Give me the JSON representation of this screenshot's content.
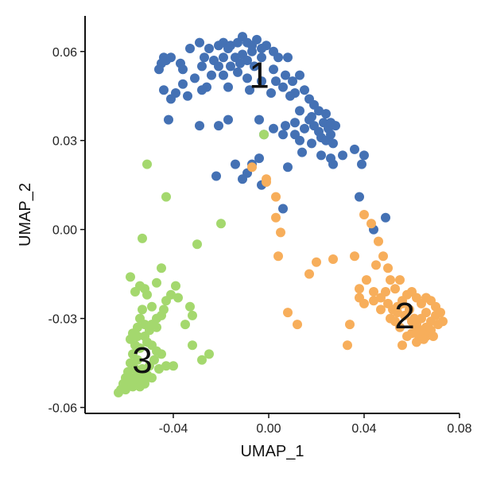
{
  "chart_data": {
    "type": "scatter",
    "title": "",
    "xlabel": "UMAP_1",
    "ylabel": "UMAP_2",
    "xlim": [
      -0.077,
      0.08
    ],
    "ylim": [
      -0.062,
      0.072
    ],
    "x_ticks": [
      -0.04,
      0.0,
      0.04,
      0.08
    ],
    "x_tick_labels": [
      "-0.04",
      "0.00",
      "0.04",
      "0.08"
    ],
    "y_ticks": [
      -0.06,
      -0.03,
      0.0,
      0.03,
      0.06
    ],
    "y_tick_labels": [
      "-0.06",
      "-0.03",
      "0.00",
      "0.03",
      "0.06"
    ],
    "grid": false,
    "legend": "none",
    "series": [
      {
        "label": "1",
        "color": "#4471b4",
        "label_pos": [
          -0.004,
          0.051
        ],
        "points": [
          [
            -0.044,
            0.058
          ],
          [
            -0.045,
            0.056
          ],
          [
            -0.043,
            0.057
          ],
          [
            -0.041,
            0.058
          ],
          [
            -0.046,
            0.054
          ],
          [
            -0.037,
            0.056
          ],
          [
            -0.033,
            0.061
          ],
          [
            -0.029,
            0.063
          ],
          [
            -0.025,
            0.061
          ],
          [
            -0.021,
            0.062
          ],
          [
            -0.019,
            0.063
          ],
          [
            -0.016,
            0.062
          ],
          [
            -0.013,
            0.063
          ],
          [
            -0.011,
            0.065
          ],
          [
            -0.009,
            0.063
          ],
          [
            -0.007,
            0.062
          ],
          [
            -0.005,
            0.064
          ],
          [
            -0.003,
            0.061
          ],
          [
            -0.001,
            0.062
          ],
          [
            0.002,
            0.06
          ],
          [
            0.004,
            0.058
          ],
          [
            -0.017,
            0.061
          ],
          [
            -0.011,
            0.059
          ],
          [
            -0.007,
            0.06
          ],
          [
            -0.003,
            0.058
          ],
          [
            -0.027,
            0.058
          ],
          [
            -0.023,
            0.057
          ],
          [
            -0.019,
            0.058
          ],
          [
            -0.014,
            0.058
          ],
          [
            -0.009,
            0.057
          ],
          [
            -0.036,
            0.054
          ],
          [
            -0.028,
            0.055
          ],
          [
            -0.021,
            0.055
          ],
          [
            -0.016,
            0.055
          ],
          [
            -0.012,
            0.056
          ],
          [
            -0.006,
            0.055
          ],
          [
            0.002,
            0.054
          ],
          [
            0.008,
            0.058
          ],
          [
            -0.031,
            0.051
          ],
          [
            -0.024,
            0.052
          ],
          [
            -0.019,
            0.052
          ],
          [
            -0.013,
            0.053
          ],
          [
            -0.009,
            0.051
          ],
          [
            -0.003,
            0.05
          ],
          [
            0.003,
            0.05
          ],
          [
            0.007,
            0.052
          ],
          [
            0.01,
            0.05
          ],
          [
            0.013,
            0.052
          ],
          [
            -0.036,
            0.049
          ],
          [
            -0.026,
            0.048
          ],
          [
            -0.017,
            0.048
          ],
          [
            -0.008,
            0.047
          ],
          [
            0.001,
            0.046
          ],
          [
            0.006,
            0.048
          ],
          [
            0.011,
            0.046
          ],
          [
            -0.044,
            0.047
          ],
          [
            -0.039,
            0.046
          ],
          [
            -0.034,
            0.045
          ],
          [
            -0.041,
            0.044
          ],
          [
            -0.028,
            0.047
          ],
          [
            0.009,
            0.045
          ],
          [
            0.015,
            0.047
          ],
          [
            0.017,
            0.044
          ],
          [
            0.019,
            0.042
          ],
          [
            0.021,
            0.04
          ],
          [
            0.024,
            0.039
          ],
          [
            0.013,
            0.04
          ],
          [
            0.017,
            0.037
          ],
          [
            0.019,
            0.035
          ],
          [
            0.021,
            0.033
          ],
          [
            0.023,
            0.036
          ],
          [
            0.025,
            0.034
          ],
          [
            0.026,
            0.036
          ],
          [
            0.026,
            0.032
          ],
          [
            0.028,
            0.035
          ],
          [
            0.022,
            0.031
          ],
          [
            0.018,
            0.038
          ],
          [
            0.015,
            0.034
          ],
          [
            0.011,
            0.036
          ],
          [
            0.007,
            0.035
          ],
          [
            0.002,
            0.034
          ],
          [
            -0.004,
            0.037
          ],
          [
            -0.017,
            0.037
          ],
          [
            -0.021,
            0.035
          ],
          [
            -0.029,
            0.035
          ],
          [
            -0.042,
            0.037
          ],
          [
            -0.002,
            0.032
          ],
          [
            0.006,
            0.032
          ],
          [
            0.011,
            0.032
          ],
          [
            0.013,
            0.03
          ],
          [
            0.018,
            0.029
          ],
          [
            0.024,
            0.03
          ],
          [
            0.027,
            0.029
          ],
          [
            0.014,
            0.026
          ],
          [
            0.022,
            0.025
          ],
          [
            0.026,
            0.024
          ],
          [
            0.031,
            0.025
          ],
          [
            0.036,
            0.027
          ],
          [
            0.04,
            0.025
          ],
          [
            0.039,
            0.022
          ],
          [
            0.027,
            0.022
          ],
          [
            0.008,
            0.021
          ],
          [
            -0.004,
            0.024
          ],
          [
            -0.007,
            0.022
          ],
          [
            -0.009,
            0.019
          ],
          [
            -0.011,
            0.017
          ],
          [
            -0.003,
            0.015
          ],
          [
            0.006,
            0.007
          ],
          [
            0.038,
            0.011
          ],
          [
            0.044,
            0.0
          ],
          [
            0.049,
            0.004
          ],
          [
            -0.022,
            0.018
          ],
          [
            -0.014,
            0.022
          ]
        ]
      },
      {
        "label": "2",
        "color": "#f7ae5b",
        "label_pos": [
          0.057,
          -0.03
        ],
        "points": [
          [
            -0.007,
            0.021
          ],
          [
            -0.001,
            0.016
          ],
          [
            0.003,
            0.011
          ],
          [
            0.003,
            0.004
          ],
          [
            -0.001,
            0.017
          ],
          [
            0.005,
            -0.001
          ],
          [
            0.004,
            -0.009
          ],
          [
            0.017,
            -0.015
          ],
          [
            0.02,
            -0.011
          ],
          [
            0.027,
            -0.01
          ],
          [
            0.036,
            -0.009
          ],
          [
            0.04,
            0.005
          ],
          [
            0.043,
            0.002
          ],
          [
            0.046,
            -0.004
          ],
          [
            0.045,
            -0.012
          ],
          [
            0.048,
            -0.009
          ],
          [
            0.05,
            -0.013
          ],
          [
            0.051,
            -0.017
          ],
          [
            0.053,
            -0.02
          ],
          [
            0.055,
            -0.017
          ],
          [
            0.041,
            -0.017
          ],
          [
            0.038,
            -0.02
          ],
          [
            0.038,
            -0.023
          ],
          [
            0.04,
            -0.025
          ],
          [
            0.044,
            -0.024
          ],
          [
            0.047,
            -0.023
          ],
          [
            0.049,
            -0.021
          ],
          [
            0.05,
            -0.025
          ],
          [
            0.052,
            -0.027
          ],
          [
            0.051,
            -0.03
          ],
          [
            0.053,
            -0.031
          ],
          [
            0.054,
            -0.028
          ],
          [
            0.056,
            -0.025
          ],
          [
            0.058,
            -0.022
          ],
          [
            0.06,
            -0.021
          ],
          [
            0.062,
            -0.023
          ],
          [
            0.064,
            -0.025
          ],
          [
            0.066,
            -0.023
          ],
          [
            0.068,
            -0.024
          ],
          [
            0.07,
            -0.026
          ],
          [
            0.066,
            -0.028
          ],
          [
            0.064,
            -0.03
          ],
          [
            0.062,
            -0.032
          ],
          [
            0.06,
            -0.035
          ],
          [
            0.063,
            -0.036
          ],
          [
            0.066,
            -0.033
          ],
          [
            0.068,
            -0.031
          ],
          [
            0.07,
            -0.029
          ],
          [
            0.071,
            -0.032
          ],
          [
            0.073,
            -0.031
          ],
          [
            0.068,
            -0.034
          ],
          [
            0.066,
            -0.036
          ],
          [
            0.064,
            -0.034
          ],
          [
            0.061,
            -0.03
          ],
          [
            0.059,
            -0.027
          ],
          [
            0.057,
            -0.029
          ],
          [
            0.055,
            -0.033
          ],
          [
            0.058,
            -0.036
          ],
          [
            0.056,
            -0.039
          ],
          [
            0.062,
            -0.038
          ],
          [
            0.065,
            -0.037
          ],
          [
            0.069,
            -0.036
          ],
          [
            0.062,
            -0.034
          ],
          [
            0.06,
            -0.031
          ],
          [
            0.072,
            -0.028
          ],
          [
            0.056,
            -0.024
          ],
          [
            0.054,
            -0.026
          ],
          [
            0.047,
            -0.027
          ],
          [
            0.044,
            -0.021
          ],
          [
            0.034,
            -0.032
          ],
          [
            0.033,
            -0.039
          ],
          [
            0.012,
            -0.032
          ],
          [
            0.008,
            -0.028
          ]
        ]
      },
      {
        "label": "3",
        "color": "#a4d86e",
        "label_pos": [
          -0.053,
          -0.045
        ],
        "points": [
          [
            -0.002,
            0.032
          ],
          [
            -0.051,
            0.022
          ],
          [
            -0.043,
            0.011
          ],
          [
            -0.02,
            0.002
          ],
          [
            -0.053,
            -0.003
          ],
          [
            -0.03,
            -0.005
          ],
          [
            -0.045,
            -0.013
          ],
          [
            -0.047,
            -0.018
          ],
          [
            -0.058,
            -0.016
          ],
          [
            -0.054,
            -0.019
          ],
          [
            -0.056,
            -0.021
          ],
          [
            -0.052,
            -0.02
          ],
          [
            -0.051,
            -0.022
          ],
          [
            -0.039,
            -0.019
          ],
          [
            -0.041,
            -0.022
          ],
          [
            -0.043,
            -0.024
          ],
          [
            -0.044,
            -0.027
          ],
          [
            -0.045,
            -0.029
          ],
          [
            -0.047,
            -0.03
          ],
          [
            -0.049,
            -0.026
          ],
          [
            -0.053,
            -0.027
          ],
          [
            -0.054,
            -0.03
          ],
          [
            -0.055,
            -0.033
          ],
          [
            -0.052,
            -0.032
          ],
          [
            -0.049,
            -0.032
          ],
          [
            -0.047,
            -0.033
          ],
          [
            -0.05,
            -0.034
          ],
          [
            -0.052,
            -0.036
          ],
          [
            -0.055,
            -0.036
          ],
          [
            -0.057,
            -0.035
          ],
          [
            -0.058,
            -0.037
          ],
          [
            -0.056,
            -0.039
          ],
          [
            -0.054,
            -0.04
          ],
          [
            -0.051,
            -0.038
          ],
          [
            -0.049,
            -0.039
          ],
          [
            -0.047,
            -0.041
          ],
          [
            -0.045,
            -0.042
          ],
          [
            -0.048,
            -0.044
          ],
          [
            -0.05,
            -0.046
          ],
          [
            -0.053,
            -0.047
          ],
          [
            -0.055,
            -0.044
          ],
          [
            -0.057,
            -0.042
          ],
          [
            -0.058,
            -0.045
          ],
          [
            -0.056,
            -0.047
          ],
          [
            -0.054,
            -0.049
          ],
          [
            -0.051,
            -0.049
          ],
          [
            -0.049,
            -0.05
          ],
          [
            -0.052,
            -0.051
          ],
          [
            -0.055,
            -0.051
          ],
          [
            -0.057,
            -0.05
          ],
          [
            -0.059,
            -0.048
          ],
          [
            -0.06,
            -0.05
          ],
          [
            -0.058,
            -0.052
          ],
          [
            -0.061,
            -0.052
          ],
          [
            -0.062,
            -0.054
          ],
          [
            -0.063,
            -0.055
          ],
          [
            -0.06,
            -0.054
          ],
          [
            -0.057,
            -0.053
          ],
          [
            -0.054,
            -0.053
          ],
          [
            -0.052,
            -0.052
          ],
          [
            -0.046,
            -0.047
          ],
          [
            -0.043,
            -0.046
          ],
          [
            -0.04,
            -0.046
          ],
          [
            -0.032,
            -0.039
          ],
          [
            -0.025,
            -0.042
          ],
          [
            -0.028,
            -0.044
          ],
          [
            -0.035,
            -0.032
          ],
          [
            -0.032,
            -0.029
          ],
          [
            -0.033,
            -0.026
          ],
          [
            -0.038,
            -0.023
          ]
        ]
      }
    ]
  }
}
